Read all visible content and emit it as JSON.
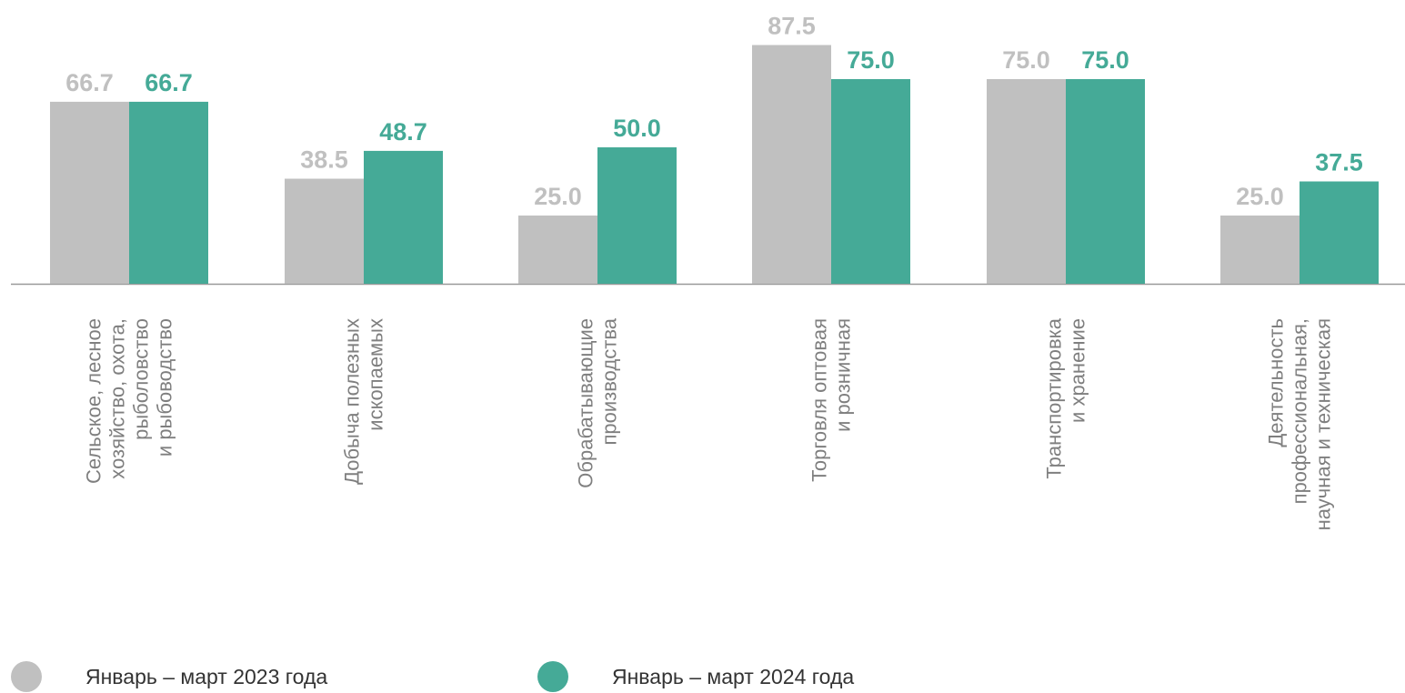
{
  "chart_data": {
    "type": "bar",
    "categories": [
      [
        "Сельское, лесное",
        "хозяйство, охота,",
        "рыболовство",
        "и рыбоводство"
      ],
      [
        "Добыча полезных",
        "ископаемых"
      ],
      [
        "Обрабатывающие",
        "производства"
      ],
      [
        "Торговля оптовая",
        "и розничная"
      ],
      [
        "Транспортировка",
        "и хранение"
      ],
      [
        "Деятельность",
        "профессиональная,",
        "научная и техническая"
      ]
    ],
    "series": [
      {
        "name": "Январь – март  2023 года",
        "color": "#c0c0c0",
        "values": [
          66.7,
          38.5,
          25.0,
          87.5,
          75.0,
          25.0
        ],
        "labels": [
          "66.7",
          "38.5",
          "25.0",
          "87.5",
          "75.0",
          "25.0"
        ]
      },
      {
        "name": "Январь – март 2024 года",
        "color": "#45aa97",
        "values": [
          66.7,
          48.7,
          50.0,
          75.0,
          75.0,
          37.5
        ],
        "labels": [
          "66.7",
          "48.7",
          "50.0",
          "75.0",
          "75.0",
          "37.5"
        ]
      }
    ],
    "ylim": [
      0,
      100
    ],
    "grid": false,
    "legend_position": "bottom",
    "axis_color": "#999999",
    "category_label_color": "#7f7f7f"
  }
}
